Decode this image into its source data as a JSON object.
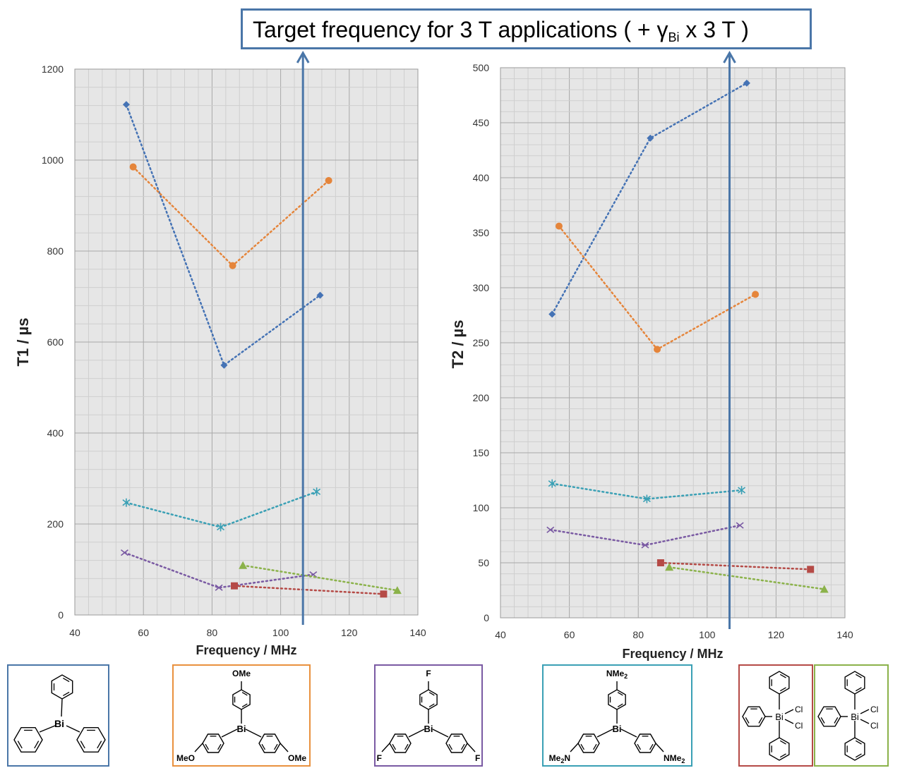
{
  "title": {
    "main": "Target frequency for 3 T applications ( + γ",
    "subscript": "Bi",
    "tail": " x 3 T )",
    "target_frequency_mhz": 106.5
  },
  "colors": {
    "blue": "#4573b5",
    "orange": "#e5853b",
    "purple": "#7a5aa3",
    "teal": "#3aa0b5",
    "red": "#b54a46",
    "green": "#8bb24a",
    "target_line": "#4a76a8"
  },
  "chart_data": [
    {
      "type": "scatter",
      "title": "",
      "xlabel": "Frequency / MHz",
      "ylabel": "T1 / µs",
      "xlim": [
        40,
        140
      ],
      "ylim": [
        0,
        1200
      ],
      "xticks": [
        "40",
        "60",
        "80",
        "100",
        "120",
        "140"
      ],
      "yticks": [
        "0",
        "200",
        "400",
        "600",
        "800",
        "1000",
        "1200"
      ],
      "grid": true,
      "series": [
        {
          "name": "triphenylbismuth",
          "color": "#4573b5",
          "marker": "diamond",
          "x": [
            55,
            83.5,
            111.5
          ],
          "y": [
            1122,
            549,
            703
          ]
        },
        {
          "name": "tris(4-methoxyphenyl)bismuth",
          "color": "#e5853b",
          "marker": "circle",
          "x": [
            57,
            86,
            114
          ],
          "y": [
            985,
            768,
            955
          ]
        },
        {
          "name": "tris(4-dimethylaminophenyl)bismuth",
          "color": "#3aa0b5",
          "marker": "star",
          "x": [
            55,
            82.5,
            110.5
          ],
          "y": [
            247,
            193,
            271
          ]
        },
        {
          "name": "tris(4-fluorophenyl)bismuth",
          "color": "#7a5aa3",
          "marker": "x",
          "x": [
            54.5,
            82,
            109.5
          ],
          "y": [
            137,
            60,
            89
          ]
        },
        {
          "name": "triphenylbismuth dichloride (red)",
          "color": "#b54a46",
          "marker": "square",
          "x": [
            86.5,
            130
          ],
          "y": [
            64,
            46
          ]
        },
        {
          "name": "triphenylbismuth dichloride (green)",
          "color": "#8bb24a",
          "marker": "triangle",
          "x": [
            89,
            134
          ],
          "y": [
            109,
            54
          ]
        }
      ]
    },
    {
      "type": "scatter",
      "title": "",
      "xlabel": "Frequency / MHz",
      "ylabel": "T2 / µs",
      "xlim": [
        40,
        140
      ],
      "ylim": [
        0,
        500
      ],
      "xticks": [
        "40",
        "60",
        "80",
        "100",
        "120",
        "140"
      ],
      "yticks": [
        "0",
        "50",
        "100",
        "150",
        "200",
        "250",
        "300",
        "350",
        "400",
        "450",
        "500"
      ],
      "grid": true,
      "series": [
        {
          "name": "triphenylbismuth",
          "color": "#4573b5",
          "marker": "diamond",
          "x": [
            55,
            83.5,
            111.5
          ],
          "y": [
            276,
            436,
            486
          ]
        },
        {
          "name": "tris(4-methoxyphenyl)bismuth",
          "color": "#e5853b",
          "marker": "circle",
          "x": [
            57,
            85.5,
            114
          ],
          "y": [
            356,
            244,
            294
          ]
        },
        {
          "name": "tris(4-dimethylaminophenyl)bismuth",
          "color": "#3aa0b5",
          "marker": "star",
          "x": [
            55,
            82.5,
            110
          ],
          "y": [
            122,
            108,
            116
          ]
        },
        {
          "name": "tris(4-fluorophenyl)bismuth",
          "color": "#7a5aa3",
          "marker": "x",
          "x": [
            54.5,
            82,
            109.5
          ],
          "y": [
            80,
            66,
            84
          ]
        },
        {
          "name": "triphenylbismuth dichloride (red)",
          "color": "#b54a46",
          "marker": "square",
          "x": [
            86.5,
            130
          ],
          "y": [
            50,
            44
          ]
        },
        {
          "name": "triphenylbismuth dichloride (green)",
          "color": "#8bb24a",
          "marker": "triangle",
          "x": [
            89,
            134
          ],
          "y": [
            46,
            26
          ]
        }
      ]
    }
  ],
  "structures": [
    {
      "name": "struct-triphenylbismuth",
      "center": "Bi",
      "substituent": "",
      "color": "#4a76a8"
    },
    {
      "name": "struct-methoxy",
      "center": "Bi",
      "substituent": "OMe",
      "substituent_top": "OMe",
      "substituent_left": "MeO",
      "substituent_right": "OMe",
      "color": "#e9913e"
    },
    {
      "name": "struct-fluoro",
      "center": "Bi",
      "substituent": "F",
      "substituent_top": "F",
      "substituent_left": "F",
      "substituent_right": "F",
      "color": "#7a5aa3"
    },
    {
      "name": "struct-dimethylamino",
      "center": "Bi",
      "substituent_top": "NMe",
      "substituent_left": "Me",
      "substituent_right": "NMe",
      "sub2": "2",
      "left_n": "N",
      "color": "#3aa0b5"
    },
    {
      "name": "struct-dichloride-red",
      "center": "Bi",
      "cl1": "Cl",
      "cl2": "Cl",
      "color": "#b54a46"
    },
    {
      "name": "struct-dichloride-green",
      "center": "Bi",
      "cl1": "Cl",
      "cl2": "Cl",
      "color": "#8bb24a"
    }
  ]
}
